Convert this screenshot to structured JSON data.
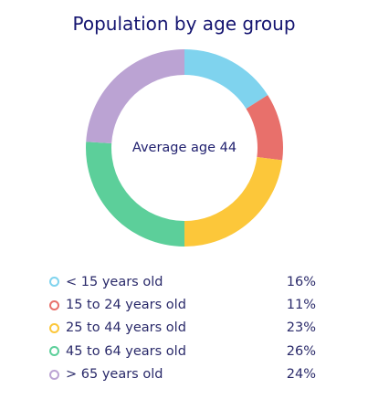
{
  "chart_data": {
    "type": "pie",
    "title": "Population by age group",
    "center_label": "Average age 44",
    "categories": [
      "< 15 years old",
      "15 to 24 years old",
      "25 to 44 years old",
      "45 to 64 years old",
      "> 65 years old"
    ],
    "values": [
      16,
      11,
      23,
      26,
      24
    ],
    "value_labels": [
      "16%",
      "11%",
      "23%",
      "26%",
      "24%"
    ],
    "colors": [
      "#7fd3ee",
      "#e8706b",
      "#fcc73a",
      "#5ccf9a",
      "#bba3d3"
    ],
    "legend_position": "bottom"
  }
}
